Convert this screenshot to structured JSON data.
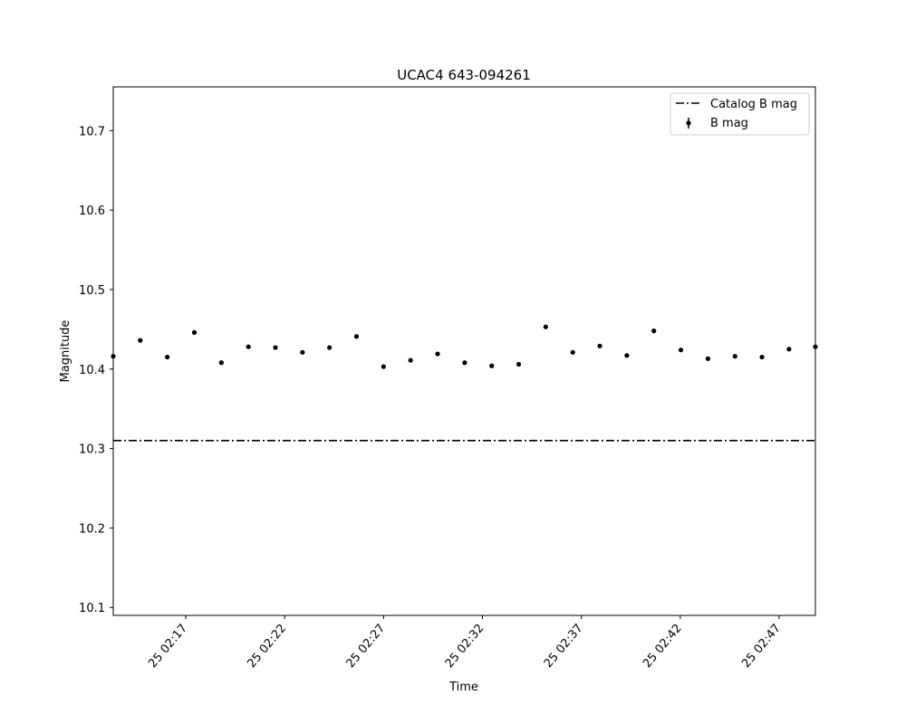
{
  "chart_data": {
    "type": "scatter",
    "title": "UCAC4 643-094261",
    "xlabel": "Time",
    "ylabel": "Magnitude",
    "xlim": [
      "25 02:13:20",
      "25 02:48:50"
    ],
    "ylim": [
      10.09,
      10.755
    ],
    "y_ticks": [
      "10.1",
      "10.2",
      "10.3",
      "10.4",
      "10.5",
      "10.6",
      "10.7"
    ],
    "x_ticks": [
      "25 02:17",
      "25 02:22",
      "25 02:27",
      "25 02:32",
      "25 02:37",
      "25 02:42",
      "25 02:47"
    ],
    "grid": false,
    "legend_position": "top-right",
    "series": [
      {
        "name": "B mag",
        "marker": "point-with-errorbar",
        "color": "#000000",
        "x": [
          "25 02:13:20",
          "25 02:14:42",
          "25 02:16:04",
          "25 02:17:26",
          "25 02:18:48",
          "25 02:20:10",
          "25 02:21:32",
          "25 02:22:54",
          "25 02:24:16",
          "25 02:25:38",
          "25 02:27:00",
          "25 02:28:22",
          "25 02:29:44",
          "25 02:31:06",
          "25 02:32:28",
          "25 02:33:50",
          "25 02:35:12",
          "25 02:36:34",
          "25 02:37:56",
          "25 02:39:18",
          "25 02:40:40",
          "25 02:42:02",
          "25 02:43:24",
          "25 02:44:46",
          "25 02:46:08",
          "25 02:47:30",
          "25 02:48:50"
        ],
        "y": [
          10.416,
          10.436,
          10.415,
          10.446,
          10.408,
          10.428,
          10.427,
          10.421,
          10.427,
          10.441,
          10.403,
          10.411,
          10.419,
          10.408,
          10.404,
          10.406,
          10.453,
          10.421,
          10.429,
          10.417,
          10.448,
          10.424,
          10.413,
          10.416,
          10.415,
          10.425,
          10.428
        ]
      },
      {
        "name": "Catalog B mag",
        "type": "hline",
        "linestyle": "dash-dot",
        "color": "#000000",
        "y": 10.31
      }
    ]
  }
}
